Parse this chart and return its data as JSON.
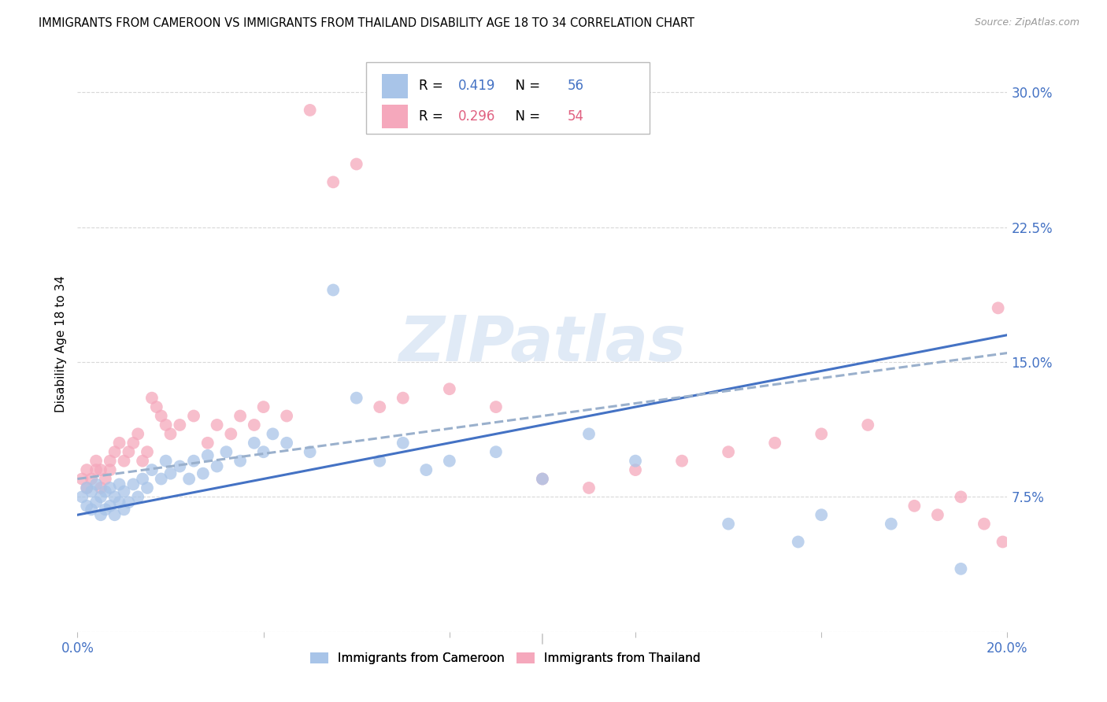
{
  "title": "IMMIGRANTS FROM CAMEROON VS IMMIGRANTS FROM THAILAND DISABILITY AGE 18 TO 34 CORRELATION CHART",
  "source": "Source: ZipAtlas.com",
  "ylabel": "Disability Age 18 to 34",
  "xlim": [
    0.0,
    0.2
  ],
  "ylim": [
    0.0,
    0.32
  ],
  "yticks": [
    0.0,
    0.075,
    0.15,
    0.225,
    0.3
  ],
  "ytick_labels": [
    "",
    "7.5%",
    "15.0%",
    "22.5%",
    "30.0%"
  ],
  "xticks": [
    0.0,
    0.04,
    0.08,
    0.12,
    0.16,
    0.2
  ],
  "xtick_labels": [
    "0.0%",
    "",
    "",
    "",
    "",
    "20.0%"
  ],
  "R_cameroon": 0.419,
  "N_cameroon": 56,
  "R_thailand": 0.296,
  "N_thailand": 54,
  "color_cameroon": "#a8c4e8",
  "color_thailand": "#f5a8bc",
  "line_color_cameroon": "#4472c4",
  "line_color_thailand": "#e06080",
  "line_color_cameroon_dash": "#8aa8d0",
  "watermark_text": "ZIPatlas",
  "background_color": "#ffffff",
  "grid_color": "#d8d8d8",
  "tick_label_color": "#4472c4",
  "cam_x": [
    0.001,
    0.002,
    0.002,
    0.003,
    0.003,
    0.004,
    0.004,
    0.005,
    0.005,
    0.006,
    0.006,
    0.007,
    0.007,
    0.008,
    0.008,
    0.009,
    0.009,
    0.01,
    0.01,
    0.011,
    0.012,
    0.013,
    0.014,
    0.015,
    0.016,
    0.018,
    0.019,
    0.02,
    0.022,
    0.024,
    0.025,
    0.027,
    0.028,
    0.03,
    0.032,
    0.035,
    0.038,
    0.04,
    0.042,
    0.045,
    0.05,
    0.055,
    0.06,
    0.065,
    0.07,
    0.075,
    0.08,
    0.09,
    0.1,
    0.11,
    0.12,
    0.14,
    0.155,
    0.16,
    0.175,
    0.19
  ],
  "cam_y": [
    0.075,
    0.07,
    0.08,
    0.068,
    0.078,
    0.072,
    0.082,
    0.065,
    0.075,
    0.068,
    0.078,
    0.07,
    0.08,
    0.065,
    0.075,
    0.072,
    0.082,
    0.068,
    0.078,
    0.072,
    0.082,
    0.075,
    0.085,
    0.08,
    0.09,
    0.085,
    0.095,
    0.088,
    0.092,
    0.085,
    0.095,
    0.088,
    0.098,
    0.092,
    0.1,
    0.095,
    0.105,
    0.1,
    0.11,
    0.105,
    0.1,
    0.19,
    0.13,
    0.095,
    0.105,
    0.09,
    0.095,
    0.1,
    0.085,
    0.11,
    0.095,
    0.06,
    0.05,
    0.065,
    0.06,
    0.035
  ],
  "thai_x": [
    0.001,
    0.002,
    0.002,
    0.003,
    0.004,
    0.004,
    0.005,
    0.005,
    0.006,
    0.007,
    0.007,
    0.008,
    0.009,
    0.01,
    0.011,
    0.012,
    0.013,
    0.014,
    0.015,
    0.016,
    0.017,
    0.018,
    0.019,
    0.02,
    0.022,
    0.025,
    0.028,
    0.03,
    0.033,
    0.035,
    0.038,
    0.04,
    0.045,
    0.05,
    0.055,
    0.06,
    0.065,
    0.07,
    0.08,
    0.09,
    0.1,
    0.11,
    0.12,
    0.13,
    0.14,
    0.15,
    0.16,
    0.17,
    0.18,
    0.185,
    0.19,
    0.195,
    0.198,
    0.199
  ],
  "thai_y": [
    0.085,
    0.08,
    0.09,
    0.085,
    0.095,
    0.09,
    0.08,
    0.09,
    0.085,
    0.095,
    0.09,
    0.1,
    0.105,
    0.095,
    0.1,
    0.105,
    0.11,
    0.095,
    0.1,
    0.13,
    0.125,
    0.12,
    0.115,
    0.11,
    0.115,
    0.12,
    0.105,
    0.115,
    0.11,
    0.12,
    0.115,
    0.125,
    0.12,
    0.29,
    0.25,
    0.26,
    0.125,
    0.13,
    0.135,
    0.125,
    0.085,
    0.08,
    0.09,
    0.095,
    0.1,
    0.105,
    0.11,
    0.115,
    0.07,
    0.065,
    0.075,
    0.06,
    0.18,
    0.05
  ]
}
